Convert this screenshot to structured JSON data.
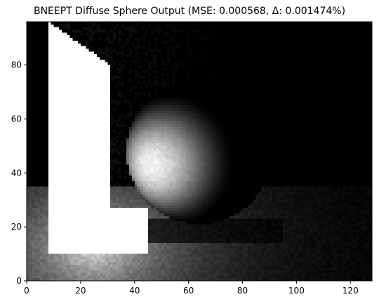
{
  "chart_data": {
    "type": "heatmap",
    "title": "BNEEPT Diffuse Sphere Output (MSE: 0.000568, Δ: 0.001474%)",
    "xlabel": "",
    "ylabel": "",
    "colormap": "gray",
    "xlim": [
      0,
      128
    ],
    "ylim": [
      0,
      96
    ],
    "y_origin": "lower",
    "x_ticks": [
      0,
      20,
      40,
      60,
      80,
      100,
      120
    ],
    "y_ticks": [
      0,
      20,
      40,
      60,
      80
    ],
    "image_resolution": [
      128,
      96
    ],
    "grid": false,
    "scene": {
      "sphere": {
        "center": [
          64,
          48
        ],
        "radius": 27
      },
      "light_panel_vertical": {
        "x": [
          8,
          31
        ],
        "y": [
          10,
          96
        ]
      },
      "light_panel_horizontal": {
        "x": [
          8,
          45
        ],
        "y": [
          10,
          27
        ]
      },
      "shadow_ground_y": 20,
      "floor_band_y": [
        0,
        35
      ]
    }
  }
}
